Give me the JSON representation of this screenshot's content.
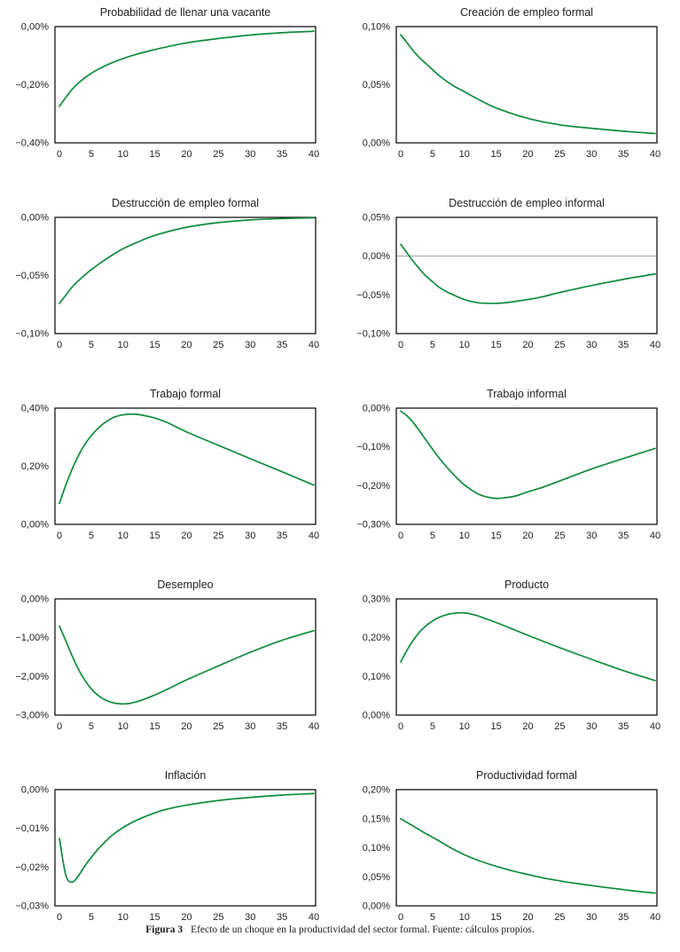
{
  "caption": {
    "label": "Figura 3",
    "text": "Efecto de un choque en la productividad del sector formal. Fuente: cálculos propios."
  },
  "style": {
    "line_color": "#0E8B3E",
    "frame_color": "#000000",
    "text_color": "#1c1c1c",
    "title_color": "#222222",
    "zero_line_color": "#a0a0a0",
    "background": "#ffffff"
  },
  "x_axis": {
    "lim": [
      0,
      40
    ],
    "ticks": [
      0,
      5,
      10,
      15,
      20,
      25,
      30,
      35,
      40
    ],
    "labels": [
      "0",
      "5",
      "10",
      "15",
      "20",
      "25",
      "30",
      "35",
      "40"
    ]
  },
  "chart_data": [
    {
      "type": "line",
      "title": "Probabilidad de llenar una vacante",
      "ylim": [
        -0.4,
        0.0
      ],
      "yticks": [
        0.0,
        -0.2,
        -0.4
      ],
      "ytick_labels": [
        "0,00%",
        "−0,20%",
        "−0,40%"
      ],
      "zero_line": false,
      "x": [
        0,
        1,
        2,
        3,
        4,
        5,
        6,
        8,
        10,
        12,
        15,
        20,
        25,
        30,
        35,
        40
      ],
      "y": [
        -0.274,
        -0.244,
        -0.216,
        -0.194,
        -0.176,
        -0.161,
        -0.148,
        -0.127,
        -0.11,
        -0.096,
        -0.079,
        -0.056,
        -0.041,
        -0.029,
        -0.021,
        -0.016
      ]
    },
    {
      "type": "line",
      "title": "Creación de empleo formal",
      "ylim": [
        0.0,
        0.1
      ],
      "yticks": [
        0.1,
        0.05,
        0.0
      ],
      "ytick_labels": [
        "0,10%",
        "0,05%",
        "0,00%"
      ],
      "zero_line": false,
      "x": [
        0,
        1,
        2,
        3,
        4,
        5,
        6,
        8,
        10,
        12,
        15,
        20,
        25,
        30,
        35,
        40
      ],
      "y": [
        0.093,
        0.086,
        0.079,
        0.073,
        0.068,
        0.063,
        0.058,
        0.05,
        0.044,
        0.038,
        0.03,
        0.021,
        0.0155,
        0.0125,
        0.01,
        0.008
      ]
    },
    {
      "type": "line",
      "title": "Destrucción de empleo formal",
      "ylim": [
        -0.1,
        0.0
      ],
      "yticks": [
        0.0,
        -0.05,
        -0.1
      ],
      "ytick_labels": [
        "0,00%",
        "−0,05%",
        "−0,10%"
      ],
      "zero_line": false,
      "x": [
        0,
        1,
        2,
        3,
        4,
        5,
        6,
        8,
        10,
        12,
        15,
        20,
        25,
        30,
        35,
        40
      ],
      "y": [
        -0.074,
        -0.067,
        -0.06,
        -0.0545,
        -0.0495,
        -0.045,
        -0.041,
        -0.0335,
        -0.027,
        -0.022,
        -0.0155,
        -0.0085,
        -0.0045,
        -0.0022,
        -0.001,
        -0.0004
      ]
    },
    {
      "type": "line",
      "title": "Destrucción de empleo informal",
      "ylim": [
        -0.1,
        0.05
      ],
      "yticks": [
        0.05,
        0.0,
        -0.05,
        -0.1
      ],
      "ytick_labels": [
        "0,05%",
        "0,00%",
        "−0,05%",
        "−0,10%"
      ],
      "zero_line": true,
      "x": [
        0,
        1,
        2,
        3,
        4,
        5,
        6,
        7,
        8,
        10,
        12,
        14,
        16,
        18,
        20,
        22,
        25,
        30,
        35,
        40
      ],
      "y": [
        0.015,
        0.004,
        -0.007,
        -0.017,
        -0.026,
        -0.033,
        -0.04,
        -0.045,
        -0.049,
        -0.056,
        -0.06,
        -0.061,
        -0.0605,
        -0.0585,
        -0.056,
        -0.053,
        -0.047,
        -0.038,
        -0.03,
        -0.023
      ]
    },
    {
      "type": "line",
      "title": "Trabajo formal",
      "ylim": [
        0.0,
        0.4
      ],
      "yticks": [
        0.4,
        0.2,
        0.0
      ],
      "ytick_labels": [
        "0,40%",
        "0,20%",
        "0,00%"
      ],
      "zero_line": false,
      "x": [
        0,
        1,
        2,
        3,
        4,
        5,
        6,
        7,
        8,
        9,
        10,
        11,
        12,
        13,
        15,
        17,
        20,
        25,
        30,
        35,
        40
      ],
      "y": [
        0.072,
        0.135,
        0.19,
        0.237,
        0.275,
        0.305,
        0.329,
        0.348,
        0.362,
        0.372,
        0.377,
        0.379,
        0.379,
        0.376,
        0.366,
        0.35,
        0.318,
        0.272,
        0.226,
        0.181,
        0.135
      ]
    },
    {
      "type": "line",
      "title": "Trabajo informal",
      "ylim": [
        -0.3,
        0.0
      ],
      "yticks": [
        0.0,
        -0.1,
        -0.2,
        -0.3
      ],
      "ytick_labels": [
        "0,00%",
        "−0,10%",
        "−0,20%",
        "−0,30%"
      ],
      "zero_line": false,
      "x": [
        0,
        1,
        2,
        3,
        4,
        5,
        6,
        7,
        8,
        9,
        10,
        11,
        12,
        13,
        14,
        15,
        16,
        18,
        20,
        22,
        25,
        30,
        35,
        40
      ],
      "y": [
        -0.008,
        -0.02,
        -0.038,
        -0.06,
        -0.083,
        -0.106,
        -0.128,
        -0.148,
        -0.166,
        -0.183,
        -0.198,
        -0.21,
        -0.22,
        -0.227,
        -0.231,
        -0.233,
        -0.232,
        -0.227,
        -0.216,
        -0.206,
        -0.188,
        -0.157,
        -0.13,
        -0.104
      ]
    },
    {
      "type": "line",
      "title": "Desempleo",
      "ylim": [
        -3.0,
        0.0
      ],
      "yticks": [
        0.0,
        -1.0,
        -2.0,
        -3.0
      ],
      "ytick_labels": [
        "0,00%",
        "−1,00%",
        "−2,00%",
        "−3,00%"
      ],
      "zero_line": false,
      "x": [
        0,
        1,
        2,
        3,
        4,
        5,
        6,
        7,
        8,
        9,
        10,
        11,
        12,
        13,
        15,
        17,
        20,
        25,
        30,
        35,
        40
      ],
      "y": [
        -0.7,
        -1.08,
        -1.47,
        -1.82,
        -2.1,
        -2.32,
        -2.48,
        -2.59,
        -2.66,
        -2.7,
        -2.71,
        -2.7,
        -2.66,
        -2.61,
        -2.48,
        -2.33,
        -2.09,
        -1.73,
        -1.38,
        -1.07,
        -0.82
      ]
    },
    {
      "type": "line",
      "title": "Producto",
      "ylim": [
        0.0,
        0.3
      ],
      "yticks": [
        0.3,
        0.2,
        0.1,
        0.0
      ],
      "ytick_labels": [
        "0,30%",
        "0,20%",
        "0,10%",
        "0,00%"
      ],
      "zero_line": false,
      "x": [
        0,
        1,
        2,
        3,
        4,
        5,
        6,
        7,
        8,
        9,
        10,
        11,
        12,
        13,
        15,
        17,
        20,
        25,
        30,
        35,
        40
      ],
      "y": [
        0.137,
        0.168,
        0.194,
        0.215,
        0.231,
        0.243,
        0.252,
        0.258,
        0.262,
        0.264,
        0.264,
        0.261,
        0.257,
        0.251,
        0.239,
        0.226,
        0.206,
        0.174,
        0.144,
        0.115,
        0.089
      ]
    },
    {
      "type": "line",
      "title": "Inflación",
      "ylim": [
        -0.03,
        0.0
      ],
      "yticks": [
        0.0,
        -0.01,
        -0.02,
        -0.03
      ],
      "ytick_labels": [
        "0,00%",
        "−0,01%",
        "−0,02%",
        "−0,03%"
      ],
      "zero_line": false,
      "x": [
        0,
        1,
        2,
        3,
        4,
        5,
        6,
        7,
        8,
        9,
        10,
        12,
        15,
        17,
        20,
        25,
        30,
        35,
        40
      ],
      "y": [
        -0.0126,
        -0.022,
        -0.0239,
        -0.0222,
        -0.0197,
        -0.0175,
        -0.0155,
        -0.0138,
        -0.0122,
        -0.0109,
        -0.0098,
        -0.008,
        -0.006,
        -0.005,
        -0.004,
        -0.0028,
        -0.002,
        -0.0014,
        -0.001
      ]
    },
    {
      "type": "line",
      "title": "Productividad formal",
      "ylim": [
        0.0,
        0.2
      ],
      "yticks": [
        0.2,
        0.15,
        0.1,
        0.05,
        0.0
      ],
      "ytick_labels": [
        "0,20%",
        "0,15%",
        "0,10%",
        "0,05%",
        "0,00%"
      ],
      "zero_line": false,
      "x": [
        0,
        2,
        4,
        6,
        8,
        10,
        12,
        15,
        18,
        20,
        22,
        25,
        28,
        30,
        32,
        35,
        38,
        40
      ],
      "y": [
        0.15,
        0.137,
        0.124,
        0.112,
        0.099,
        0.088,
        0.079,
        0.068,
        0.059,
        0.054,
        0.049,
        0.043,
        0.038,
        0.035,
        0.032,
        0.028,
        0.024,
        0.022
      ]
    }
  ]
}
